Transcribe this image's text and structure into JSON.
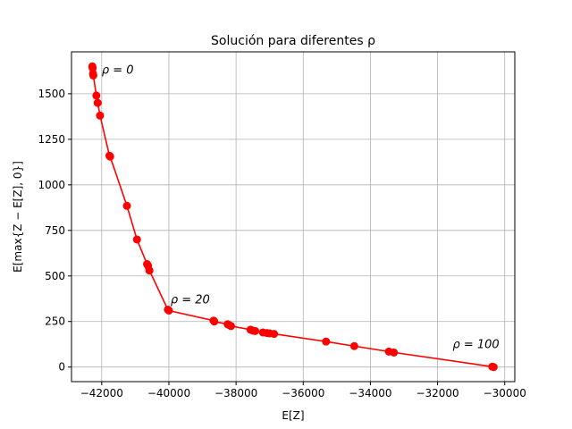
{
  "chart_data": {
    "type": "line",
    "title": "Solución para diferentes ρ",
    "xlabel": "E[Z]",
    "ylabel": "E[max{Z − E[Z], 0}]",
    "xlim": [
      -42900,
      -29700
    ],
    "ylim": [
      -80,
      1730
    ],
    "xticks": [
      -42000,
      -40000,
      -38000,
      -36000,
      -34000,
      -32000,
      -30000
    ],
    "xtick_labels": [
      "−42000",
      "−40000",
      "−38000",
      "−36000",
      "−34000",
      "−32000",
      "−30000"
    ],
    "yticks": [
      0,
      250,
      500,
      750,
      1000,
      1250,
      1500
    ],
    "ytick_labels": [
      "0",
      "250",
      "500",
      "750",
      "1000",
      "1250",
      "1500"
    ],
    "grid": true,
    "line_color": "#ff0000",
    "marker_color": "#ff0000",
    "series": [
      {
        "x": [
          -42280,
          -42270,
          -42260,
          -42250,
          -42160,
          -42120,
          -42050,
          -41770,
          -41750,
          -41250,
          -40950,
          -40650,
          -40620,
          -40580,
          -40030,
          -40000,
          -38670,
          -38650,
          -38250,
          -38200,
          -38150,
          -37570,
          -37500,
          -37430,
          -37200,
          -37080,
          -37000,
          -36870,
          -35320,
          -34480,
          -33450,
          -33300,
          -30370,
          -30330
        ],
        "y": [
          1650,
          1640,
          1610,
          1600,
          1490,
          1450,
          1380,
          1160,
          1155,
          885,
          700,
          565,
          555,
          530,
          315,
          310,
          255,
          250,
          235,
          230,
          225,
          205,
          200,
          198,
          190,
          187,
          185,
          182,
          140,
          115,
          85,
          80,
          2,
          0
        ]
      }
    ],
    "annotations": [
      {
        "text": "ρ = 0",
        "x": -42000,
        "y": 1610
      },
      {
        "text": "ρ = 20",
        "x": -39950,
        "y": 350
      },
      {
        "text": "ρ = 100",
        "x": -31550,
        "y": 105
      }
    ]
  }
}
